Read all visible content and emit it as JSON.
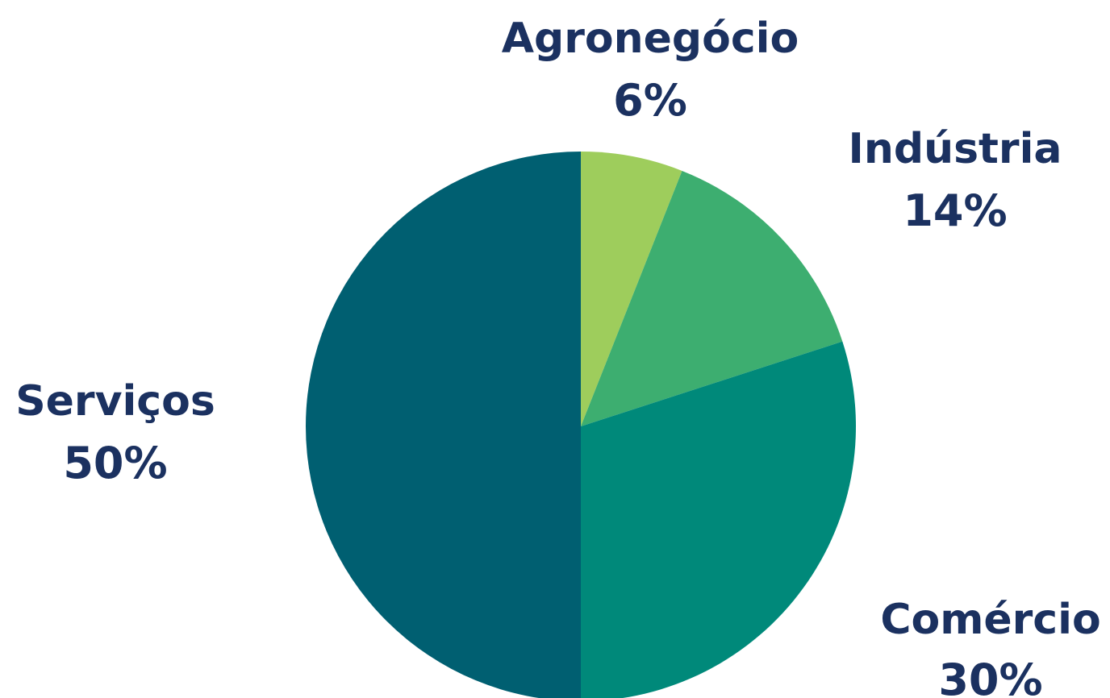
{
  "chart_data": {
    "type": "pie",
    "start_angle": "12 o'clock",
    "direction": "clockwise",
    "label_color": "#1b3160",
    "slices": [
      {
        "label": "Agronegócio",
        "value": 6,
        "value_label": "6%",
        "color": "#9ecd5c"
      },
      {
        "label": "Indústria",
        "value": 14,
        "value_label": "14%",
        "color": "#3dae70"
      },
      {
        "label": "Comércio",
        "value": 30,
        "value_label": "30%",
        "color": "#00897a"
      },
      {
        "label": "Serviços",
        "value": 50,
        "value_label": "50%",
        "color": "#005f71"
      }
    ]
  }
}
